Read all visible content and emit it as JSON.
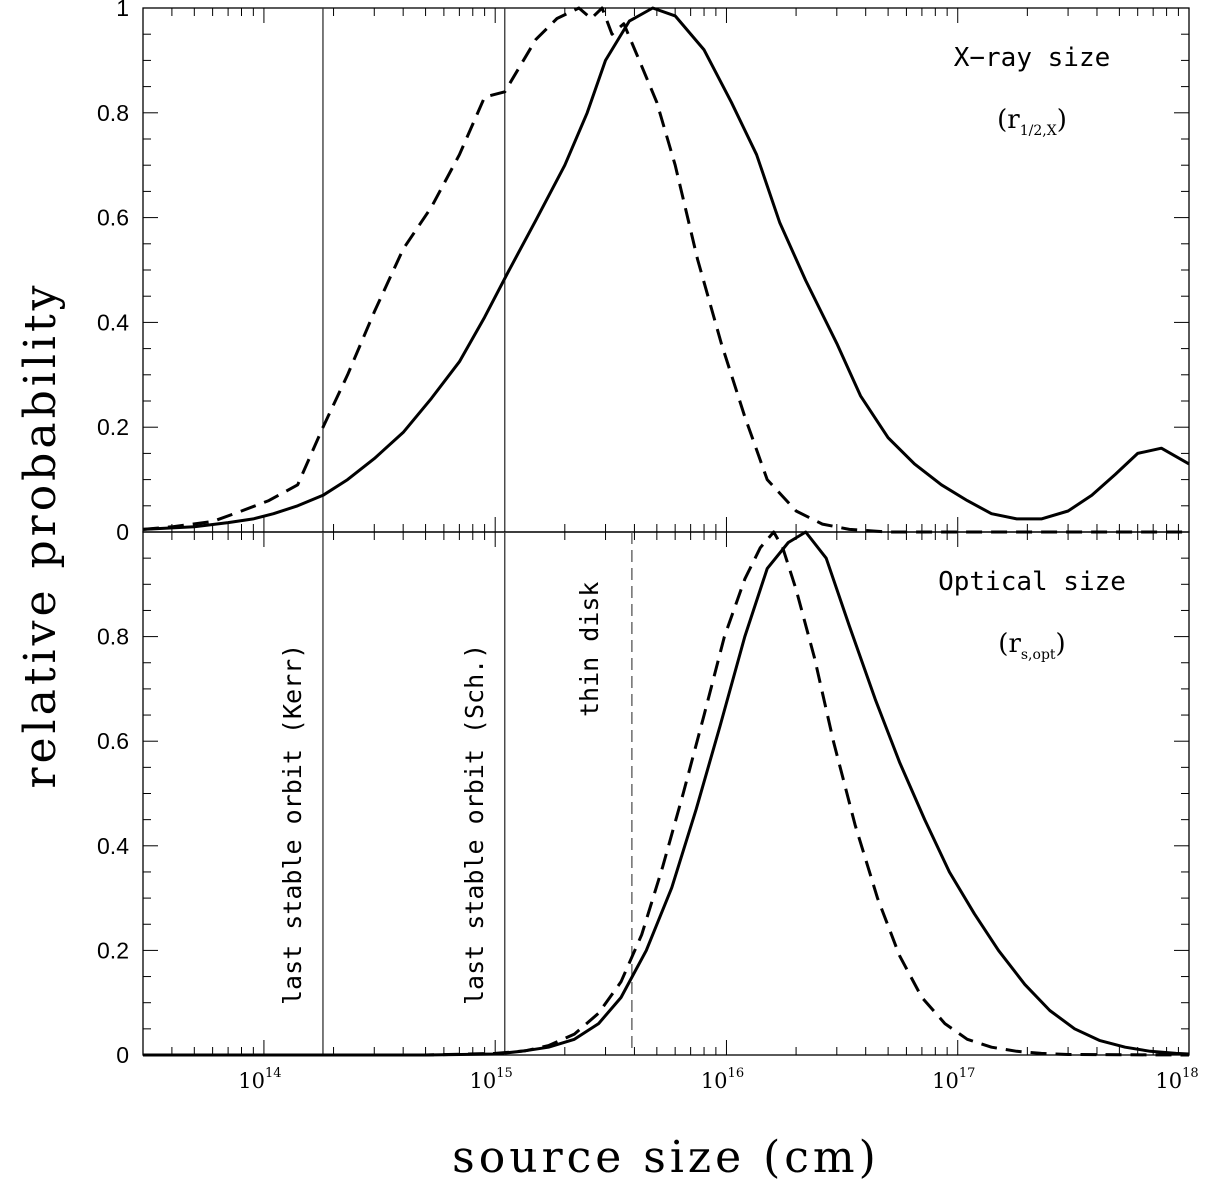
{
  "chart_data": {
    "type": "line",
    "xlabel": "source size (cm)",
    "ylabel": "relative probability",
    "x_scale": "log",
    "xlim": [
      30000000000000.0,
      1e+18
    ],
    "x_ticks": [
      {
        "mant": "10",
        "exp": "14"
      },
      {
        "mant": "10",
        "exp": "15"
      },
      {
        "mant": "10",
        "exp": "16"
      },
      {
        "mant": "10",
        "exp": "17"
      },
      {
        "mant": "10",
        "exp": "18"
      }
    ],
    "vertical_lines": [
      {
        "x": 180000000000000.0,
        "style": "solid",
        "label": "last stable orbit (Kerr)"
      },
      {
        "x": 1100000000000000.0,
        "style": "solid",
        "label": "last stable orbit (Sch.)"
      },
      {
        "x": 3900000000000000.0,
        "style": "dashed",
        "label": "thin disk",
        "panel": "bottom"
      }
    ],
    "panels": [
      {
        "name": "top",
        "annotation": "X−ray size",
        "annotation_symbol": {
          "base": "r",
          "sub": "1/2,X"
        },
        "ylim": [
          0,
          1
        ],
        "yticks": [
          "0",
          "0.2",
          "0.4",
          "0.6",
          "0.8",
          "1"
        ],
        "series": [
          {
            "style": "solid",
            "points": [
              [
                30000000000000.0,
                0.005
              ],
              [
                50000000000000.0,
                0.01
              ],
              [
                70000000000000.0,
                0.018
              ],
              [
                90000000000000.0,
                0.025
              ],
              [
                110000000000000.0,
                0.035
              ],
              [
                140000000000000.0,
                0.05
              ],
              [
                180000000000000.0,
                0.07
              ],
              [
                230000000000000.0,
                0.1
              ],
              [
                300000000000000.0,
                0.14
              ],
              [
                400000000000000.0,
                0.19
              ],
              [
                530000000000000.0,
                0.255
              ],
              [
                700000000000000.0,
                0.325
              ],
              [
                900000000000000.0,
                0.41
              ],
              [
                1150000000000000.0,
                0.5
              ],
              [
                1500000000000000.0,
                0.595
              ],
              [
                2000000000000000.0,
                0.7
              ],
              [
                2500000000000000.0,
                0.8
              ],
              [
                3000000000000000.0,
                0.9
              ],
              [
                3800000000000000.0,
                0.975
              ],
              [
                4800000000000000.0,
                1.0
              ],
              [
                6000000000000000.0,
                0.985
              ],
              [
                8000000000000000.0,
                0.92
              ],
              [
                1.05e+16,
                0.82
              ],
              [
                1.35e+16,
                0.72
              ],
              [
                1.7e+16,
                0.59
              ],
              [
                2.2e+16,
                0.48
              ],
              [
                3e+16,
                0.36
              ],
              [
                3.8e+16,
                0.26
              ],
              [
                5e+16,
                0.18
              ],
              [
                6.5e+16,
                0.13
              ],
              [
                8.5e+16,
                0.09
              ],
              [
                1.1e+17,
                0.06
              ],
              [
                1.4e+17,
                0.035
              ],
              [
                1.8e+17,
                0.025
              ],
              [
                2.3e+17,
                0.025
              ],
              [
                3e+17,
                0.04
              ],
              [
                3.8e+17,
                0.07
              ],
              [
                4.8e+17,
                0.11
              ],
              [
                6e+17,
                0.15
              ],
              [
                7.6e+17,
                0.16
              ],
              [
                1e+18,
                0.13
              ]
            ]
          },
          {
            "style": "dashed",
            "points": [
              [
                30000000000000.0,
                0.005
              ],
              [
                40000000000000.0,
                0.01
              ],
              [
                60000000000000.0,
                0.02
              ],
              [
                80000000000000.0,
                0.04
              ],
              [
                105000000000000.0,
                0.06
              ],
              [
                140000000000000.0,
                0.09
              ],
              [
                180000000000000.0,
                0.2
              ],
              [
                230000000000000.0,
                0.3
              ],
              [
                300000000000000.0,
                0.42
              ],
              [
                400000000000000.0,
                0.54
              ],
              [
                530000000000000.0,
                0.62
              ],
              [
                700000000000000.0,
                0.72
              ],
              [
                900000000000000.0,
                0.83
              ],
              [
                1100000000000000.0,
                0.84
              ],
              [
                1500000000000000.0,
                0.94
              ],
              [
                1850000000000000.0,
                0.98
              ],
              [
                2300000000000000.0,
                1.0
              ],
              [
                2600000000000000.0,
                0.98
              ],
              [
                2900000000000000.0,
                1.0
              ],
              [
                3200000000000000.0,
                0.95
              ],
              [
                3600000000000000.0,
                0.97
              ],
              [
                4200000000000000.0,
                0.9
              ],
              [
                5000000000000000.0,
                0.82
              ],
              [
                6000000000000000.0,
                0.7
              ],
              [
                7500000000000000.0,
                0.52
              ],
              [
                9500000000000000.0,
                0.36
              ],
              [
                1.2e+16,
                0.22
              ],
              [
                1.5e+16,
                0.1
              ],
              [
                2e+16,
                0.04
              ],
              [
                2.6e+16,
                0.015
              ],
              [
                3.4e+16,
                0.005
              ],
              [
                5e+16,
                0.0
              ],
              [
                1e+18,
                0.0
              ]
            ]
          }
        ]
      },
      {
        "name": "bottom",
        "annotation": "Optical size",
        "annotation_symbol": {
          "base": "r",
          "sub": "s,opt"
        },
        "ylim": [
          0,
          1
        ],
        "yticks": [
          "0",
          "0.2",
          "0.4",
          "0.6",
          "0.8"
        ],
        "series": [
          {
            "style": "solid",
            "points": [
              [
                30000000000000.0,
                0.0
              ],
              [
                500000000000000.0,
                0.0
              ],
              [
                1000000000000000.0,
                0.002
              ],
              [
                1300000000000000.0,
                0.007
              ],
              [
                1700000000000000.0,
                0.015
              ],
              [
                2200000000000000.0,
                0.03
              ],
              [
                2800000000000000.0,
                0.06
              ],
              [
                3500000000000000.0,
                0.11
              ],
              [
                4500000000000000.0,
                0.2
              ],
              [
                5800000000000000.0,
                0.32
              ],
              [
                7400000000000000.0,
                0.47
              ],
              [
                9400000000000000.0,
                0.63
              ],
              [
                1.2e+16,
                0.8
              ],
              [
                1.5e+16,
                0.93
              ],
              [
                1.85e+16,
                0.98
              ],
              [
                2.2e+16,
                1.0
              ],
              [
                2.7e+16,
                0.95
              ],
              [
                3.4e+16,
                0.82
              ],
              [
                4.4e+16,
                0.68
              ],
              [
                5.6e+16,
                0.56
              ],
              [
                7.2e+16,
                0.45
              ],
              [
                9.2e+16,
                0.35
              ],
              [
                1.18e+17,
                0.27
              ],
              [
                1.5e+17,
                0.2
              ],
              [
                1.95e+17,
                0.135
              ],
              [
                2.5e+17,
                0.085
              ],
              [
                3.2e+17,
                0.05
              ],
              [
                4.1e+17,
                0.028
              ],
              [
                5.3e+17,
                0.015
              ],
              [
                6.8e+17,
                0.007
              ],
              [
                8.8e+17,
                0.003
              ],
              [
                1e+18,
                0.002
              ]
            ]
          },
          {
            "style": "dashed",
            "points": [
              [
                30000000000000.0,
                0.0
              ],
              [
                500000000000000.0,
                0.0
              ],
              [
                1000000000000000.0,
                0.003
              ],
              [
                1350000000000000.0,
                0.008
              ],
              [
                1700000000000000.0,
                0.018
              ],
              [
                2200000000000000.0,
                0.04
              ],
              [
                2800000000000000.0,
                0.08
              ],
              [
                3500000000000000.0,
                0.14
              ],
              [
                4300000000000000.0,
                0.23
              ],
              [
                5300000000000000.0,
                0.36
              ],
              [
                6500000000000000.0,
                0.5
              ],
              [
                8000000000000000.0,
                0.65
              ],
              [
                9800000000000000.0,
                0.8
              ],
              [
                1.2e+16,
                0.91
              ],
              [
                1.4e+16,
                0.97
              ],
              [
                1.6e+16,
                1.0
              ],
              [
                1.75e+16,
                0.97
              ],
              [
                2e+16,
                0.89
              ],
              [
                2.4e+16,
                0.76
              ],
              [
                2.9e+16,
                0.6
              ],
              [
                3.6e+16,
                0.44
              ],
              [
                4.5e+16,
                0.3
              ],
              [
                5.6e+16,
                0.19
              ],
              [
                7e+16,
                0.11
              ],
              [
                8.8e+16,
                0.06
              ],
              [
                1.1e+17,
                0.03
              ],
              [
                1.4e+17,
                0.015
              ],
              [
                1.8e+17,
                0.007
              ],
              [
                2.3e+17,
                0.003
              ],
              [
                3e+17,
                0.001
              ],
              [
                1e+18,
                0.0
              ]
            ]
          }
        ]
      }
    ]
  }
}
